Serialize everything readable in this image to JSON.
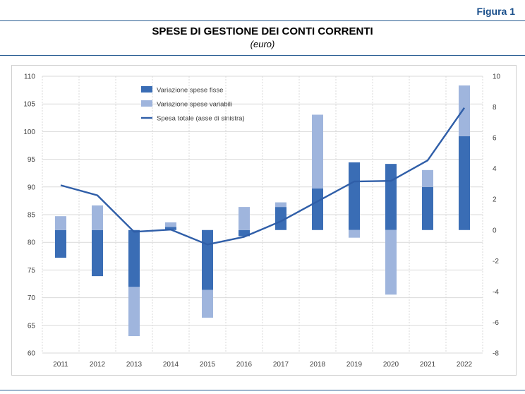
{
  "figure_label": "Figura 1",
  "title": "SPESE DI GESTIONE DEI CONTI CORRENTI",
  "subtitle": "(euro)",
  "colors": {
    "fixed": "#3a6db5",
    "variable": "#9fb5dd",
    "line": "#2f5ea8",
    "rule": "#2a5e93",
    "label": "#1a4f8b"
  },
  "chart_data": {
    "type": "bar",
    "subtype": "stacked bar + line (dual axis)",
    "categories": [
      "2011",
      "2012",
      "2013",
      "2014",
      "2015",
      "2016",
      "2017",
      "2018",
      "2019",
      "2020",
      "2021",
      "2022"
    ],
    "left_axis": {
      "ylim": [
        60,
        110
      ],
      "ticks": [
        "110",
        "105",
        "100",
        "95",
        "90",
        "85",
        "80",
        "75",
        "70",
        "65",
        "60"
      ]
    },
    "right_axis": {
      "ylim": [
        -8,
        10
      ],
      "ticks": [
        "10",
        "8",
        "6",
        "4",
        "2",
        "0",
        "-2",
        "-4",
        "-6",
        "-8"
      ]
    },
    "grid": true,
    "legend_position": "top-left",
    "series": [
      {
        "name": "Variazione spese fisse",
        "axis": "right",
        "kind": "bar",
        "values": [
          -1.8,
          -3.0,
          -3.7,
          0.2,
          -3.9,
          -0.4,
          1.5,
          2.7,
          4.4,
          4.3,
          2.8,
          6.1
        ]
      },
      {
        "name": "Variazione spese variabili",
        "axis": "right",
        "kind": "bar",
        "values": [
          0.9,
          1.6,
          -3.2,
          0.3,
          -1.8,
          1.5,
          0.3,
          4.8,
          -0.5,
          -4.2,
          1.1,
          3.3
        ]
      },
      {
        "name": "Spesa totale (asse di sinistra)",
        "axis": "left",
        "kind": "line",
        "values": [
          90.3,
          88.5,
          81.9,
          82.3,
          79.6,
          81.0,
          83.8,
          87.4,
          91.0,
          91.1,
          94.8,
          104.3
        ]
      }
    ]
  }
}
